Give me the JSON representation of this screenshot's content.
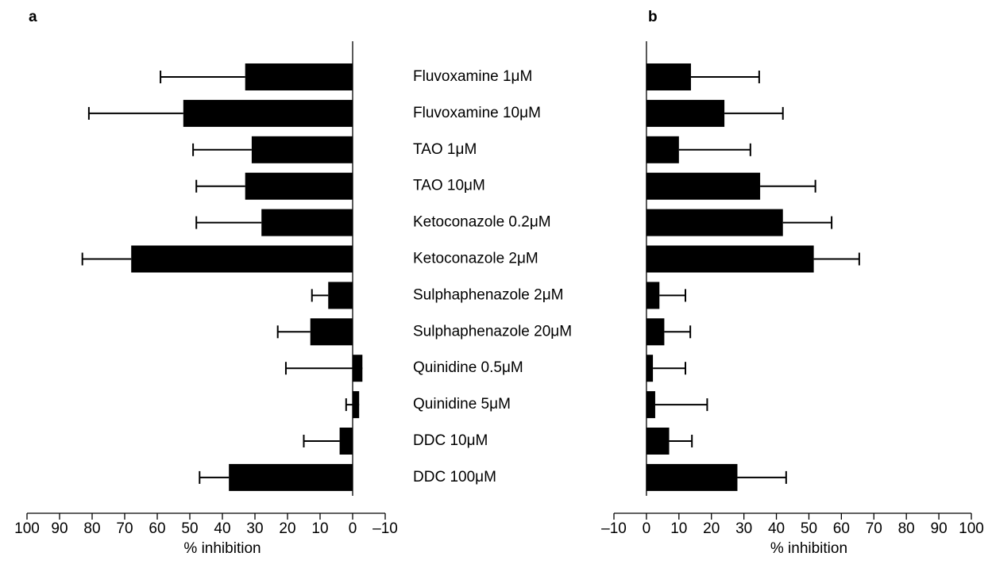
{
  "chart_data": [
    {
      "type": "bar",
      "orientation": "horizontal",
      "x_reversed": true,
      "title": "a",
      "xlabel": "% inhibition",
      "categories": [
        "Fluvoxamine 1μM",
        "Fluvoxamine 10μM",
        "TAO 1μM",
        "TAO 10μM",
        "Ketoconazole 0.2μM",
        "Ketoconazole 2μM",
        "Sulphaphenazole 2μM",
        "Sulphaphenazole 20μM",
        "Quinidine 0.5μM",
        "Quinidine 5μM",
        "DDC 10μM",
        "DDC 100μM"
      ],
      "series": [
        {
          "color": "#000000",
          "values": [
            33,
            52,
            31,
            33,
            28,
            68,
            7.5,
            13,
            -3,
            -2,
            4,
            38
          ],
          "errors": [
            26,
            29,
            18,
            15,
            20,
            15,
            5,
            10,
            23.5,
            4,
            11,
            9
          ]
        }
      ],
      "xlim": [
        100,
        -10
      ],
      "xticks": [
        100,
        90,
        80,
        70,
        60,
        50,
        40,
        30,
        20,
        10,
        0,
        {
          "value": -10,
          "label": "–10"
        }
      ]
    },
    {
      "type": "bar",
      "orientation": "horizontal",
      "x_reversed": false,
      "title": "b",
      "xlabel": "% inhibition",
      "series": [
        {
          "color": "#000000",
          "values": [
            13.7,
            24,
            10,
            35,
            42,
            51.5,
            4,
            5.5,
            2,
            2.7,
            7,
            28
          ],
          "errors": [
            21,
            18,
            22,
            17,
            15,
            14,
            8,
            8,
            10,
            16,
            7,
            15
          ]
        }
      ],
      "xlim": [
        -10,
        100
      ],
      "xticks": [
        {
          "value": -10,
          "label": "–10"
        },
        0,
        10,
        20,
        30,
        40,
        50,
        60,
        70,
        80,
        90,
        100
      ]
    }
  ]
}
